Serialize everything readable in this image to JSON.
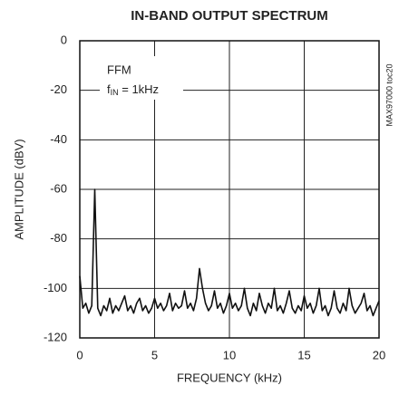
{
  "chart_data": {
    "type": "line",
    "title": "IN-BAND OUTPUT SPECTRUM",
    "xlabel": "FREQUENCY (kHz)",
    "ylabel": "AMPLITUDE (dBV)",
    "annotation": "FFM",
    "annotation_parts": [
      "f",
      "IN",
      " = 1kHz"
    ],
    "side_note": "MAX97000 toc20",
    "xlim": [
      0,
      20
    ],
    "xticks": [
      0,
      5,
      10,
      15,
      20
    ],
    "ylim": [
      -120,
      0
    ],
    "yticks": [
      0,
      -20,
      -40,
      -60,
      -80,
      -100,
      -120
    ],
    "grid": true,
    "series": [
      {
        "color": "#111111",
        "x": [
          0,
          0.2,
          0.4,
          0.6,
          0.8,
          1.0,
          1.2,
          1.4,
          1.6,
          1.8,
          2.0,
          2.2,
          2.4,
          2.6,
          2.8,
          3.0,
          3.2,
          3.4,
          3.6,
          3.8,
          4.0,
          4.2,
          4.4,
          4.6,
          4.8,
          5.0,
          5.2,
          5.4,
          5.6,
          5.8,
          6.0,
          6.2,
          6.4,
          6.6,
          6.8,
          7.0,
          7.2,
          7.4,
          7.6,
          7.8,
          8.0,
          8.2,
          8.4,
          8.6,
          8.8,
          9.0,
          9.2,
          9.4,
          9.6,
          9.8,
          10.0,
          10.2,
          10.4,
          10.6,
          10.8,
          11.0,
          11.2,
          11.4,
          11.6,
          11.8,
          12.0,
          12.2,
          12.4,
          12.6,
          12.8,
          13.0,
          13.2,
          13.4,
          13.6,
          13.8,
          14.0,
          14.2,
          14.4,
          14.6,
          14.8,
          15.0,
          15.2,
          15.4,
          15.6,
          15.8,
          16.0,
          16.2,
          16.4,
          16.6,
          16.8,
          17.0,
          17.2,
          17.4,
          17.6,
          17.8,
          18.0,
          18.2,
          18.4,
          18.6,
          18.8,
          19.0,
          19.2,
          19.4,
          19.6,
          19.8,
          20.0
        ],
        "values": [
          -95,
          -108,
          -106,
          -110,
          -107,
          -60,
          -108,
          -111,
          -107,
          -109,
          -104,
          -110,
          -107,
          -109,
          -106,
          -103,
          -109,
          -107,
          -110,
          -106,
          -104,
          -109,
          -107,
          -110,
          -108,
          -104,
          -108,
          -106,
          -109,
          -107,
          -102,
          -109,
          -106,
          -108,
          -107,
          -101,
          -108,
          -106,
          -109,
          -104,
          -92,
          -100,
          -106,
          -109,
          -107,
          -101,
          -108,
          -106,
          -110,
          -107,
          -102,
          -108,
          -106,
          -109,
          -107,
          -100,
          -108,
          -111,
          -106,
          -109,
          -102,
          -107,
          -110,
          -106,
          -108,
          -100,
          -109,
          -107,
          -110,
          -106,
          -101,
          -108,
          -110,
          -107,
          -109,
          -103,
          -108,
          -106,
          -110,
          -107,
          -100,
          -109,
          -107,
          -111,
          -108,
          -101,
          -108,
          -110,
          -106,
          -109,
          -100,
          -107,
          -110,
          -108,
          -106,
          -102,
          -109,
          -107,
          -111,
          -108,
          -105
        ]
      }
    ]
  }
}
